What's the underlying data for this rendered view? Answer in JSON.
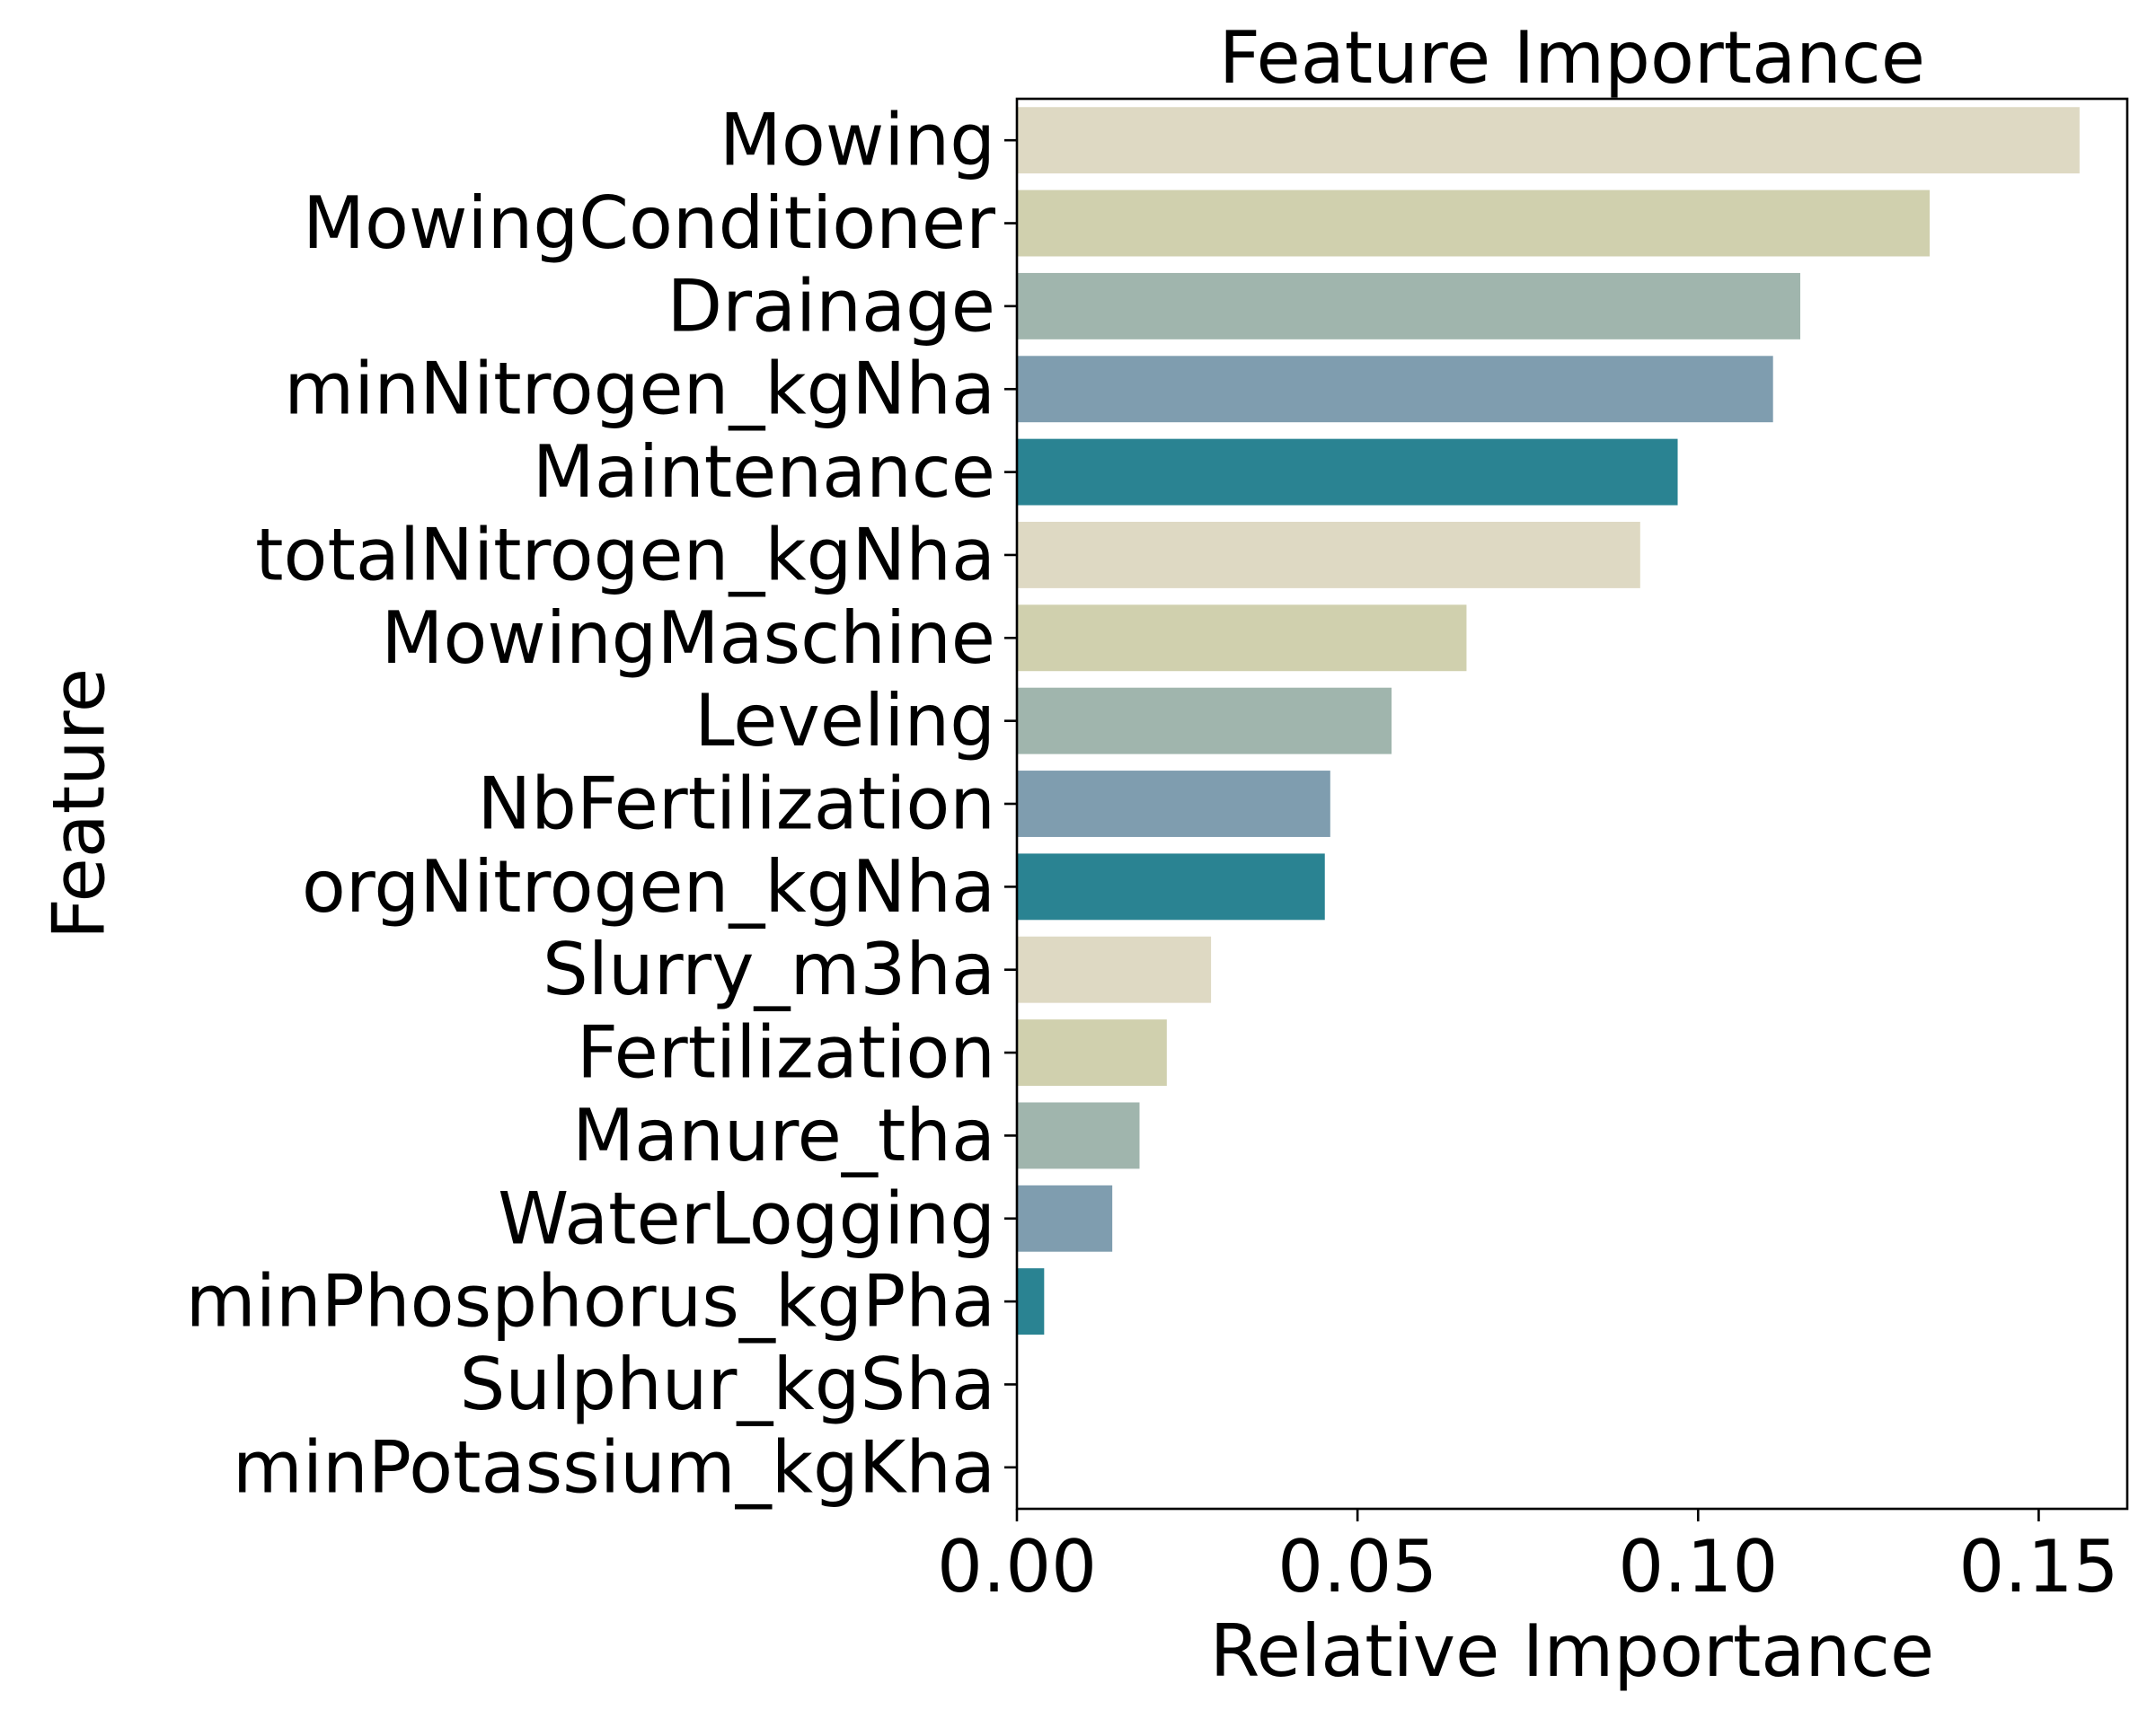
{
  "chart_data": {
    "type": "bar",
    "orientation": "horizontal",
    "title": "Feature Importance",
    "xlabel": "Relative Importance",
    "ylabel": "Feature",
    "xlim": [
      0,
      0.163
    ],
    "xticks": [
      "0.00",
      "0.05",
      "0.10",
      "0.15"
    ],
    "xtick_values": [
      0,
      0.05,
      0.1,
      0.15
    ],
    "grid": false,
    "categories": [
      "Mowing",
      "MowingConditioner",
      "Drainage",
      "minNitrogen_kgNha",
      "Maintenance",
      "totalNitrogen_kgNha",
      "MowingMaschine",
      "Leveling",
      "NbFertilization",
      "orgNitrogen_kgNha",
      "Slurry_m3ha",
      "Fertilization",
      "Manure_tha",
      "WaterLogging",
      "minPhosphorus_kgPha",
      "Sulphur_kgSha",
      "minPotassium_kgKha"
    ],
    "values": [
      0.156,
      0.134,
      0.115,
      0.111,
      0.097,
      0.0915,
      0.066,
      0.055,
      0.046,
      0.0452,
      0.0285,
      0.022,
      0.018,
      0.014,
      0.004,
      0.0,
      0.0
    ],
    "palette": [
      "#ded9c3",
      "#d0d0ae",
      "#a0b5ad",
      "#7f9daf",
      "#2a8392"
    ]
  }
}
